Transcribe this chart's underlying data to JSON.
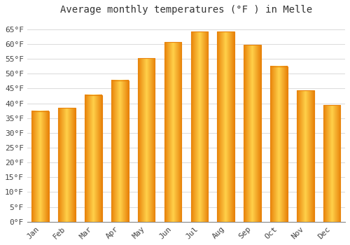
{
  "title": "Average monthly temperatures (°F ) in Melle",
  "months": [
    "Jan",
    "Feb",
    "Mar",
    "Apr",
    "May",
    "Jun",
    "Jul",
    "Aug",
    "Sep",
    "Oct",
    "Nov",
    "Dec"
  ],
  "values": [
    37.4,
    38.5,
    42.8,
    47.8,
    55.2,
    60.6,
    64.2,
    64.2,
    59.7,
    52.5,
    44.4,
    39.4
  ],
  "bar_color_center": "#FFD04A",
  "bar_color_edge": "#E8820A",
  "background_color": "#FFFFFF",
  "plot_bg_color": "#FFFFFF",
  "yticks": [
    0,
    5,
    10,
    15,
    20,
    25,
    30,
    35,
    40,
    45,
    50,
    55,
    60,
    65
  ],
  "ylim": [
    0,
    68
  ],
  "title_fontsize": 10,
  "tick_fontsize": 8,
  "grid_color": "#DDDDDD",
  "title_font": "monospace"
}
